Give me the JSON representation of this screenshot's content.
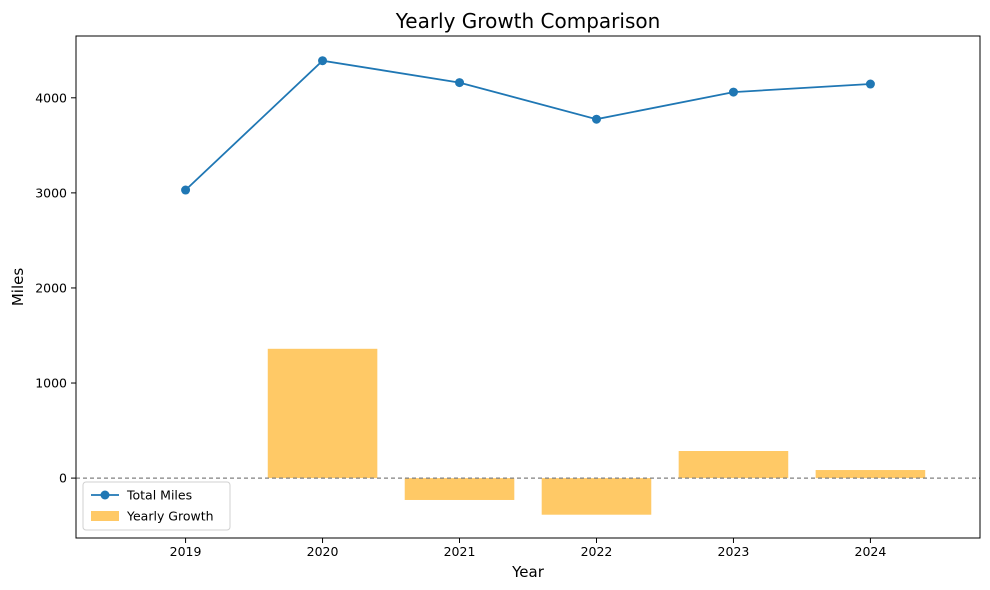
{
  "chart_data": {
    "type": "line+bar",
    "title": "Yearly Growth Comparison",
    "xlabel": "Year",
    "ylabel": "Miles",
    "categories": [
      "2019",
      "2020",
      "2021",
      "2022",
      "2023",
      "2024"
    ],
    "ylim": [
      -630,
      4650
    ],
    "yticks": [
      0,
      1000,
      2000,
      3000,
      4000
    ],
    "grid": false,
    "legend_position": "lower-left",
    "zero_line": {
      "value": 0,
      "style": "dashed",
      "color": "#808080"
    },
    "series": [
      {
        "name": "Total Miles",
        "type": "line",
        "marker": "circle",
        "color": "#1f77b4",
        "values": [
          3030,
          4390,
          4160,
          3775,
          4060,
          4145
        ]
      },
      {
        "name": "Yearly Growth",
        "type": "bar",
        "color": "#ffc966",
        "values": [
          null,
          1360,
          -230,
          -385,
          285,
          85
        ]
      }
    ]
  }
}
